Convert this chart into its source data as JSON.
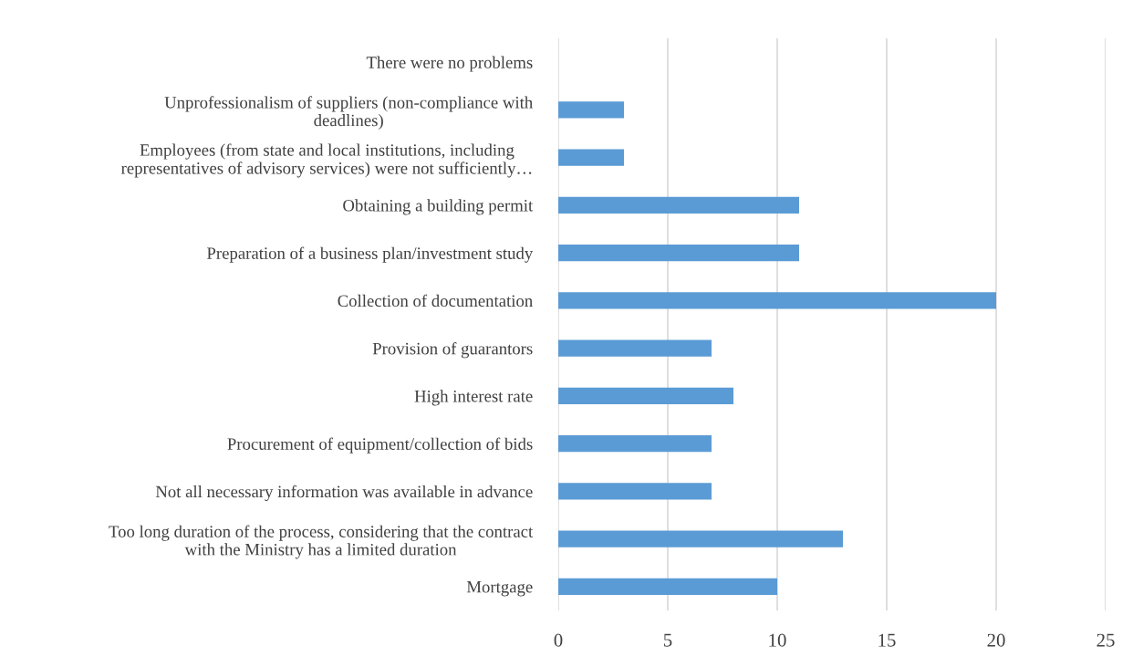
{
  "chart_data": {
    "type": "bar",
    "orientation": "horizontal",
    "categories": [
      "There were no problems",
      "Unprofessionalism of suppliers (non-compliance with\ndeadlines)",
      "Employees (from state and local institutions, including\nrepresentatives of advisory services) were not sufficiently…",
      "Obtaining a building permit",
      "Preparation of a business plan/investment study",
      "Collection of documentation",
      "Provision of guarantors",
      "High interest rate",
      "Procurement of equipment/collection of bids",
      "Not all necessary information was available in advance",
      "Too long duration of the process, considering that the contract\nwith the Ministry has a limited duration",
      "Mortgage"
    ],
    "values": [
      0,
      3,
      3,
      11,
      11,
      20,
      7,
      8,
      7,
      7,
      13,
      10
    ],
    "color": "#5b9bd5",
    "xlim": [
      0,
      25
    ],
    "xticks": [
      0,
      5,
      10,
      15,
      20,
      25
    ],
    "grid": "x",
    "legend": false
  }
}
